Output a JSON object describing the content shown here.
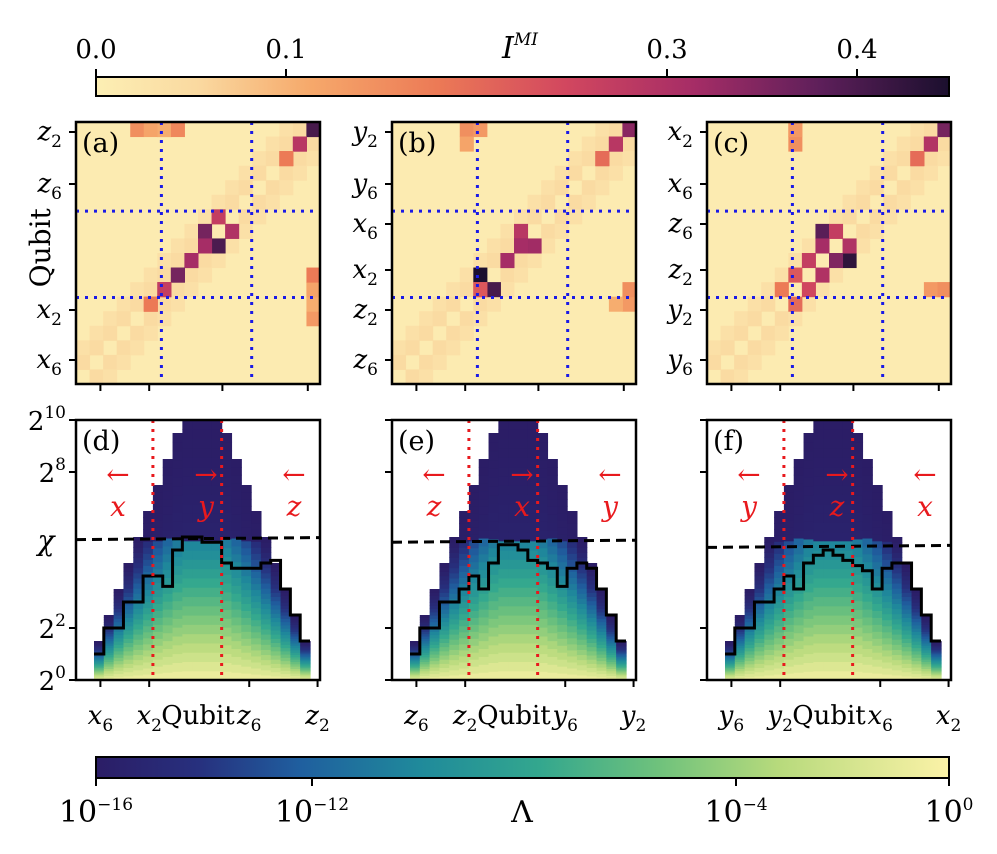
{
  "colors": {
    "mi_divider": "#1a1ae6",
    "dmrg_divider": "#e8191d",
    "frame": "#000000",
    "bond_dim_line": "#000000",
    "lambda_low": "#2b1d66",
    "lambda_high": "#fbf2a7",
    "mi_low": "#fcebaf",
    "mi_high": "#1b0f2e"
  },
  "colorbars": {
    "mi": {
      "label_base": "I",
      "label_sup": "MI",
      "ticks": [
        "0.0",
        "0.1",
        "0.3",
        "0.4"
      ],
      "tick_values": [
        0.0,
        0.1,
        0.3,
        0.4
      ],
      "range": [
        0.0,
        0.45
      ]
    },
    "lambda": {
      "label": "Λ",
      "ticks": [
        {
          "base": "10",
          "exp": "−16",
          "value": -16
        },
        {
          "base": "10",
          "exp": "−12",
          "value": -12
        },
        {
          "base": "10",
          "exp": "−4",
          "value": -4
        },
        {
          "base": "10",
          "exp": "0",
          "value": 0
        }
      ],
      "scale": "log",
      "range_exp": [
        -16,
        0
      ]
    }
  },
  "chart_data": [
    {
      "panel": "(a)",
      "type": "heatmap",
      "ylabel": "Qubit",
      "yticks": [
        {
          "b": "z",
          "s": "2"
        },
        {
          "b": "z",
          "s": "6"
        },
        {
          "b": "x",
          "s": "2"
        },
        {
          "b": "x",
          "s": "6"
        }
      ],
      "n": 18,
      "dividers": [
        5,
        11
      ],
      "hot_pairs": [
        [
          0,
          17,
          0.45
        ],
        [
          1,
          16,
          0.32
        ],
        [
          2,
          15,
          0.2
        ],
        [
          7,
          11,
          0.3
        ],
        [
          8,
          10,
          0.4
        ],
        [
          8,
          9,
          0.35
        ],
        [
          9,
          8,
          0.35
        ],
        [
          10,
          7,
          0.4
        ],
        [
          11,
          6,
          0.3
        ],
        [
          12,
          5,
          0.2
        ],
        [
          0,
          4,
          0.15
        ],
        [
          0,
          5,
          0.12
        ],
        [
          0,
          6,
          0.15
        ],
        [
          11,
          17,
          0.12
        ],
        [
          10,
          17,
          0.18
        ]
      ]
    },
    {
      "panel": "(b)",
      "type": "heatmap",
      "yticks": [
        {
          "b": "y",
          "s": "2"
        },
        {
          "b": "y",
          "s": "6"
        },
        {
          "b": "x",
          "s": "6"
        },
        {
          "b": "x",
          "s": "2"
        },
        {
          "b": "z",
          "s": "2"
        },
        {
          "b": "z",
          "s": "6"
        }
      ],
      "n": 18,
      "dividers": [
        5,
        11
      ],
      "hot_pairs": [
        [
          0,
          17,
          0.38
        ],
        [
          1,
          16,
          0.32
        ],
        [
          2,
          15,
          0.22
        ],
        [
          8,
          10,
          0.32
        ],
        [
          8,
          9,
          0.35
        ],
        [
          9,
          8,
          0.35
        ],
        [
          10,
          6,
          0.45
        ],
        [
          11,
          6,
          0.25
        ],
        [
          0,
          5,
          0.15
        ],
        [
          1,
          5,
          0.12
        ],
        [
          11,
          17,
          0.15
        ]
      ]
    },
    {
      "panel": "(c)",
      "type": "heatmap",
      "yticks": [
        {
          "b": "x",
          "s": "2"
        },
        {
          "b": "x",
          "s": "6"
        },
        {
          "b": "z",
          "s": "6"
        },
        {
          "b": "z",
          "s": "2"
        },
        {
          "b": "y",
          "s": "2"
        },
        {
          "b": "y",
          "s": "6"
        }
      ],
      "n": 18,
      "dividers": [
        5,
        11
      ],
      "hot_pairs": [
        [
          0,
          17,
          0.4
        ],
        [
          1,
          16,
          0.33
        ],
        [
          2,
          15,
          0.22
        ],
        [
          9,
          10,
          0.43
        ],
        [
          8,
          10,
          0.3
        ],
        [
          9,
          9,
          0.35
        ],
        [
          10,
          8,
          0.3
        ],
        [
          11,
          7,
          0.25
        ],
        [
          12,
          6,
          0.2
        ],
        [
          0,
          6,
          0.12
        ],
        [
          1,
          6,
          0.15
        ],
        [
          11,
          17,
          0.15
        ]
      ]
    },
    {
      "panel": "(d)",
      "type": "heatmap",
      "xlabel": "Qubit",
      "ylabel": "χ",
      "yticks": [
        {
          "b": "2",
          "s": "10"
        },
        {
          "b": "2",
          "s": "8"
        },
        {
          "b": "2",
          "s": "2"
        },
        {
          "b": "2",
          "s": "0"
        }
      ],
      "xticks": [
        {
          "b": "x",
          "s": "6"
        },
        {
          "b": "x",
          "s": "2"
        },
        {
          "b": "z",
          "s": "6"
        },
        {
          "b": "z",
          "s": "2"
        }
      ],
      "arrows": [
        {
          "sym": "←",
          "lbl": "x"
        },
        {
          "sym": "→",
          "lbl": "y"
        },
        {
          "sym": "←",
          "lbl": "z"
        }
      ],
      "bond_dim_log2": [
        1,
        2,
        2,
        3,
        3,
        4,
        4,
        3.6,
        5,
        5.5,
        5.5,
        5.3,
        5.3,
        4.5,
        4.3,
        4.3,
        4.3,
        4.5,
        4.6,
        3.5,
        2.5,
        1.5
      ],
      "threshold_log2": 5.4,
      "divider_cols": [
        6,
        13
      ],
      "n_cols": 22
    },
    {
      "panel": "(e)",
      "type": "heatmap",
      "xlabel": "Qubit",
      "xticks": [
        {
          "b": "z",
          "s": "6"
        },
        {
          "b": "z",
          "s": "2"
        },
        {
          "b": "y",
          "s": "6"
        },
        {
          "b": "y",
          "s": "2"
        }
      ],
      "arrows": [
        {
          "sym": "←",
          "lbl": "z"
        },
        {
          "sym": "→",
          "lbl": "x"
        },
        {
          "sym": "←",
          "lbl": "y"
        }
      ],
      "bond_dim_log2": [
        1,
        2,
        2,
        3,
        3,
        3.5,
        4,
        3.5,
        4.5,
        5.2,
        5.2,
        5.0,
        4.6,
        4.5,
        4.3,
        3.6,
        4.3,
        4.5,
        4.3,
        3.5,
        2.5,
        1.5
      ],
      "threshold_log2": 5.3,
      "divider_cols": [
        6,
        13
      ],
      "n_cols": 22
    },
    {
      "panel": "(f)",
      "type": "heatmap",
      "xlabel": "Qubit",
      "xticks": [
        {
          "b": "y",
          "s": "6"
        },
        {
          "b": "y",
          "s": "2"
        },
        {
          "b": "x",
          "s": "6"
        },
        {
          "b": "x",
          "s": "2"
        }
      ],
      "arrows": [
        {
          "sym": "←",
          "lbl": "y"
        },
        {
          "sym": "→",
          "lbl": "z"
        },
        {
          "sym": "←",
          "lbl": "x"
        }
      ],
      "bond_dim_log2": [
        1,
        2,
        2,
        3,
        3,
        3.5,
        4,
        3.5,
        4.5,
        4.8,
        5.0,
        4.8,
        4.6,
        4.4,
        4.2,
        3.5,
        4.3,
        4.5,
        4.5,
        3.5,
        2.5,
        1.5
      ],
      "threshold_log2": 5.1,
      "divider_cols": [
        6,
        13
      ],
      "n_cols": 22
    }
  ]
}
